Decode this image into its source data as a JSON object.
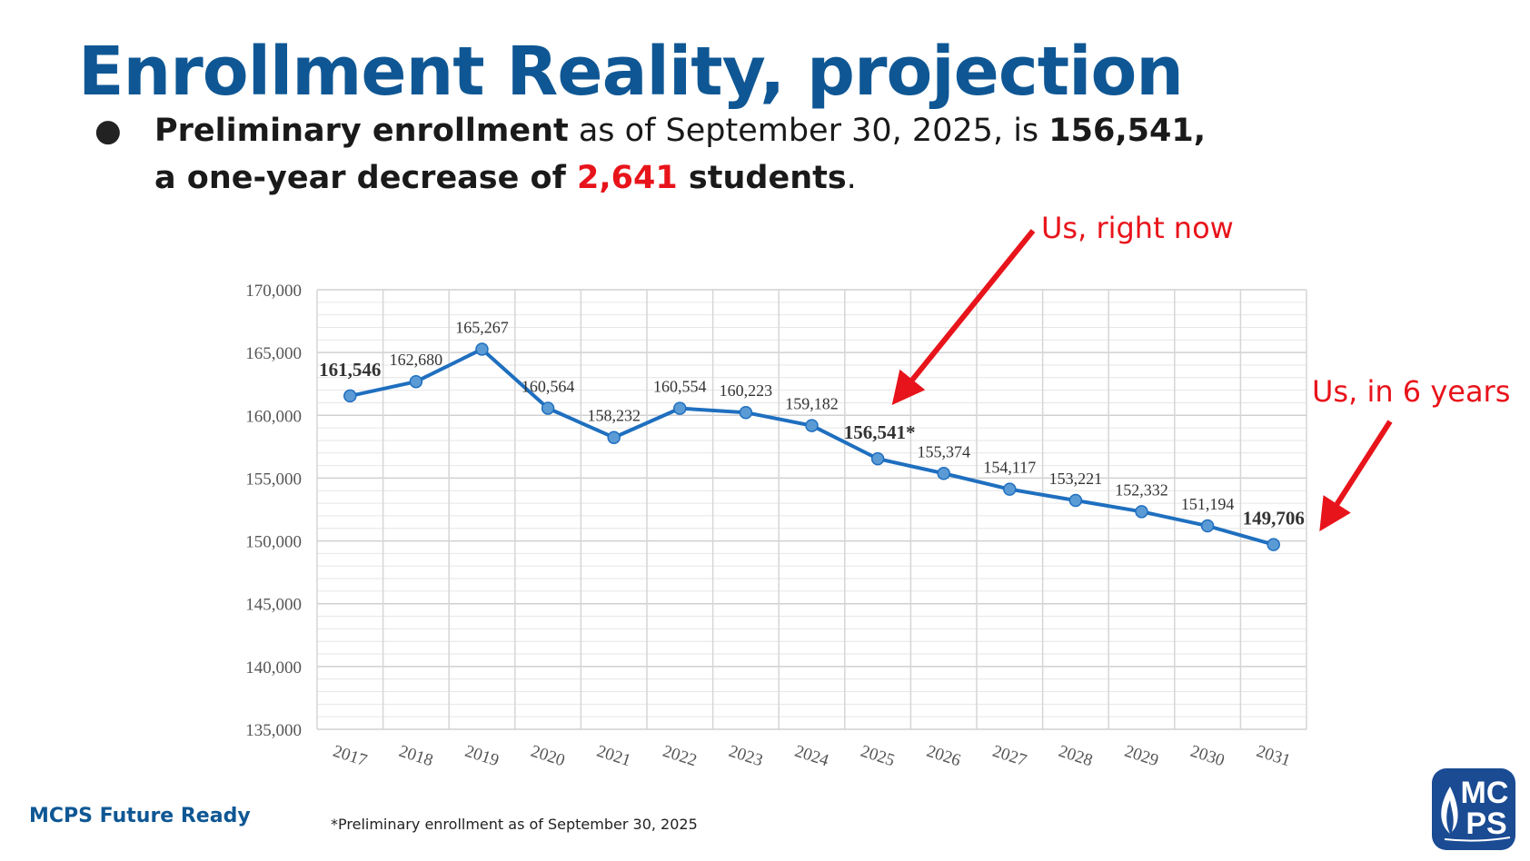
{
  "title": "Enrollment Reality, projection",
  "bullet": {
    "p1_bold": "Preliminary enrollment",
    "p1": " as of September 30, 2025, is ",
    "p1_num": "156,541,",
    "p2_bold": "a one-year decrease of ",
    "p2_red": "2,641",
    "p2_bold2": " students",
    "p2_end": "."
  },
  "annotations": {
    "now": "Us, right now",
    "future": "Us, in 6 years"
  },
  "footer": "MCPS Future Ready",
  "footnote": "*Preliminary enrollment as of September 30, 2025",
  "logo": "MCPS",
  "colors": {
    "line": "#1f6fbf",
    "marker": "#5b9bd5",
    "annotation": "#e8141b",
    "title": "#0f5794"
  },
  "chart_data": {
    "type": "line",
    "categories": [
      "2017",
      "2018",
      "2019",
      "2020",
      "2021",
      "2022",
      "2023",
      "2024",
      "2025",
      "2026",
      "2027",
      "2028",
      "2029",
      "2030",
      "2031"
    ],
    "values": [
      161546,
      162680,
      165267,
      160564,
      158232,
      160554,
      160223,
      159182,
      156541,
      155374,
      154117,
      153221,
      152332,
      151194,
      149706
    ],
    "labels": [
      "161,546",
      "162,680",
      "165,267",
      "160,564",
      "158,232",
      "160,554",
      "160,223",
      "159,182",
      "156,541*",
      "155,374",
      "154,117",
      "153,221",
      "152,332",
      "151,194",
      "149,706"
    ],
    "bold_labels": [
      0,
      8,
      14
    ],
    "ylim": [
      135000,
      170000
    ],
    "yticks": [
      135000,
      140000,
      145000,
      150000,
      155000,
      160000,
      165000,
      170000
    ],
    "ytick_labels": [
      "135,000",
      "140,000",
      "145,000",
      "150,000",
      "155,000",
      "160,000",
      "165,000",
      "170,000"
    ],
    "grid": true
  }
}
